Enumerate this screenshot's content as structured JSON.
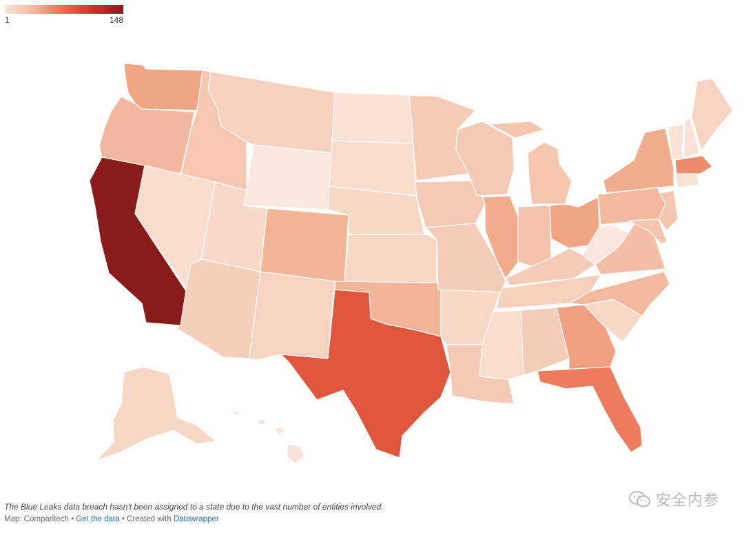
{
  "legend": {
    "min_label": "1",
    "max_label": "148",
    "colors": [
      "#f9e6dc",
      "#f3b79a",
      "#e86a4d",
      "#c0392b",
      "#8b1a1a"
    ]
  },
  "map": {
    "highlighted_states": [
      {
        "state": "CA",
        "color": "#8b1a1a"
      },
      {
        "state": "TX",
        "color": "#e0563d"
      },
      {
        "state": "FL",
        "color": "#ed7b5e"
      },
      {
        "state": "MA",
        "color": "#ee8a6c"
      },
      {
        "state": "GA",
        "color": "#f0a080"
      },
      {
        "state": "WA",
        "color": "#f1a585"
      },
      {
        "state": "OH",
        "color": "#f1a585"
      },
      {
        "state": "IL",
        "color": "#f2ac8d"
      },
      {
        "state": "NY",
        "color": "#f2ad8e"
      }
    ]
  },
  "footer": {
    "note": "The Blue Leaks data breach hasn't been assigned to a state due to the vast number of entities involved.",
    "source_prefix": "Map: Comparitech • ",
    "get_data": "Get the data",
    "created_with": " • Created with ",
    "datawrapper": "Datawrapper"
  },
  "watermark": {
    "text": "安全内参",
    "icon": "wechat-icon"
  }
}
